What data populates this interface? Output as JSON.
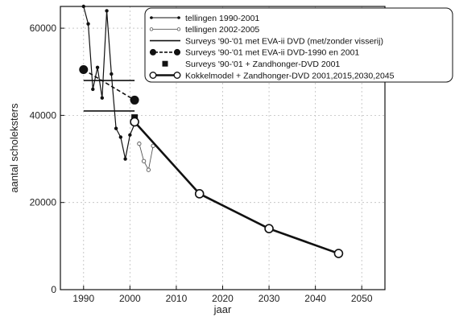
{
  "chart_data": {
    "type": "line",
    "title": "",
    "xlabel": "jaar",
    "ylabel": "aantal scholeksters",
    "xlim": [
      1985,
      2055
    ],
    "ylim": [
      0,
      65000
    ],
    "x_ticks": [
      1990,
      2000,
      2010,
      2020,
      2030,
      2040,
      2050
    ],
    "y_ticks": [
      0,
      20000,
      40000,
      60000
    ],
    "grid": true,
    "legend_position": "top-right",
    "series": [
      {
        "name": "tellingen 1990-2001",
        "style": "line-small-dots",
        "color": "#111111",
        "x": [
          1990,
          1991,
          1992,
          1993,
          1994,
          1995,
          1996,
          1997,
          1998,
          1999,
          2000,
          2001
        ],
        "y": [
          65000,
          61000,
          46000,
          51000,
          44000,
          64000,
          49500,
          37000,
          35000,
          30000,
          35500,
          38000
        ]
      },
      {
        "name": "tellingen 2002-2005",
        "style": "thin-line-open-dots",
        "color": "#555555",
        "x": [
          2002,
          2003,
          2004,
          2005
        ],
        "y": [
          33500,
          29500,
          27500,
          33000
        ]
      },
      {
        "name": "Surveys '90-'01 met EVA-ii DVD (met/zonder visserij)",
        "style": "horizontal-segments",
        "color": "#111111",
        "segments": [
          {
            "x": [
              1990,
              2001
            ],
            "y": [
              48000,
              48000
            ]
          },
          {
            "x": [
              1990,
              2001
            ],
            "y": [
              41000,
              41000
            ]
          }
        ]
      },
      {
        "name": "Surveys '90-'01 met EVA-ii DVD-1990 en 2001",
        "style": "dashed-big-filled-dots",
        "color": "#111111",
        "x": [
          1990,
          2001
        ],
        "y": [
          50500,
          43500
        ]
      },
      {
        "name": "Surveys '90-'01 + Zandhonger-DVD 2001",
        "style": "filled-square",
        "color": "#111111",
        "x": [
          2001
        ],
        "y": [
          39500
        ]
      },
      {
        "name": "Kokkelmodel + Zandhonger-DVD 2001,2015,2030,2045",
        "style": "thick-line-open-circles",
        "color": "#111111",
        "x": [
          2001,
          2015,
          2030,
          2045
        ],
        "y": [
          38500,
          22000,
          14000,
          8300
        ]
      }
    ]
  }
}
